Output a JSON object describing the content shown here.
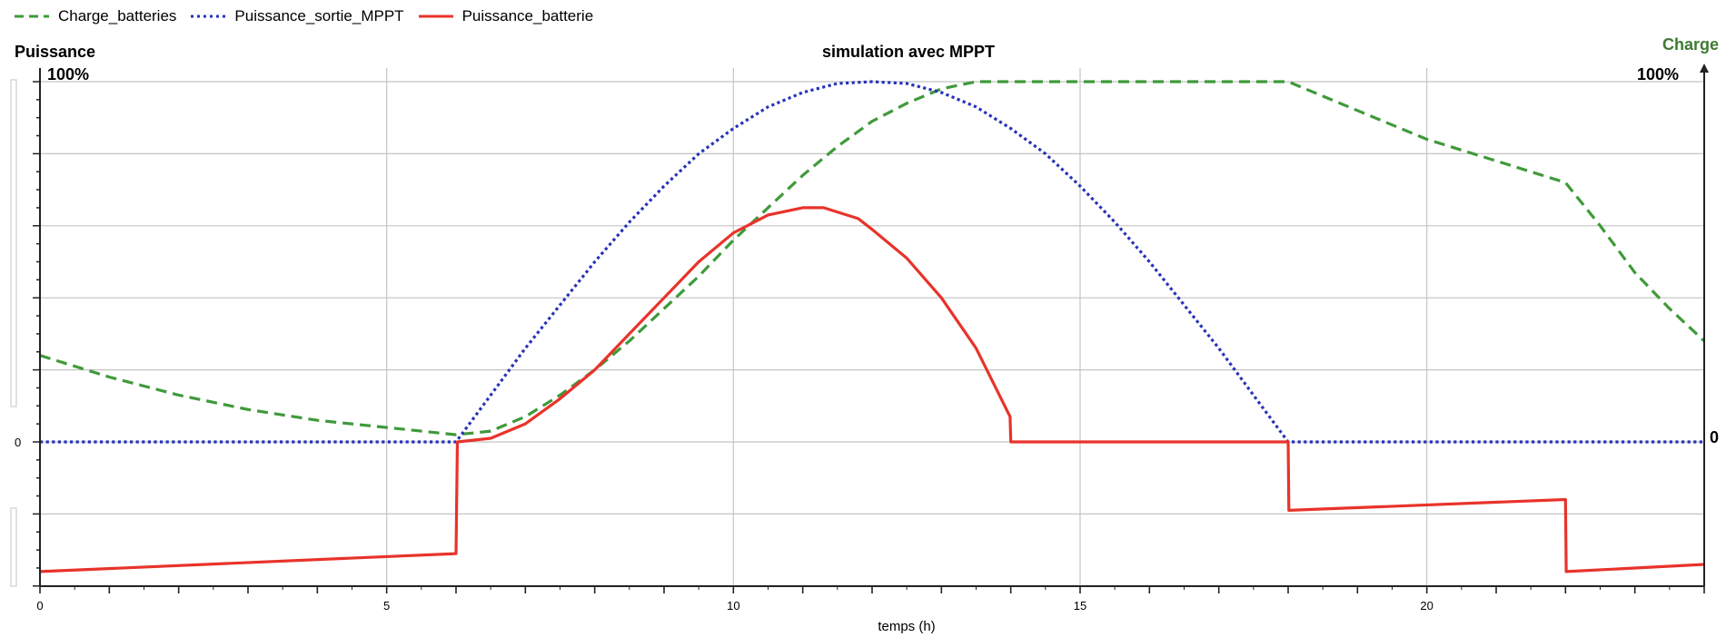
{
  "chart_data": {
    "type": "line",
    "title": "simulation avec MPPT",
    "xlabel": "temps (h)",
    "ylabel_left": "Puissance",
    "ylabel_right": "Charge",
    "left_top_label": "100%",
    "left_zero_label": "0",
    "right_top_label": "100%",
    "right_zero_label": "0",
    "xlim": [
      0,
      24
    ],
    "xticks": [
      "0",
      "5",
      "10",
      "15",
      "20"
    ],
    "ylim_pct": [
      -40,
      100
    ],
    "grid": true,
    "legend_position": "top-left",
    "series": [
      {
        "name": "Charge_batteries",
        "style": "dashed",
        "color": "#3f9a3a",
        "x": [
          0,
          1,
          2,
          3,
          4,
          5,
          6,
          6.5,
          7,
          7.5,
          8,
          8.5,
          9,
          9.5,
          10,
          10.5,
          11,
          11.5,
          12,
          12.5,
          13,
          13.5,
          14,
          15,
          16,
          17,
          18,
          19,
          20,
          21,
          22,
          22.5,
          23,
          23.5,
          24
        ],
        "y": [
          24,
          18,
          13,
          9,
          6,
          4,
          2,
          3,
          7,
          13,
          20,
          28,
          37,
          46,
          56,
          65,
          74,
          82,
          89,
          94,
          98,
          100,
          100,
          100,
          100,
          100,
          100,
          92,
          84,
          78,
          72,
          60,
          47,
          37,
          28
        ]
      },
      {
        "name": "Puissance_sortie_MPPT",
        "style": "dotted",
        "color": "#2632b8",
        "x": [
          0,
          6,
          6.5,
          7,
          7.5,
          8,
          8.5,
          9,
          9.5,
          10,
          10.5,
          11,
          11.5,
          12,
          12.5,
          13,
          13.5,
          14,
          14.5,
          15,
          15.5,
          16,
          16.5,
          17,
          17.5,
          18,
          19,
          20,
          21,
          22,
          23,
          24
        ],
        "y": [
          0,
          0,
          13,
          26,
          38,
          50,
          61,
          71,
          80,
          87,
          93,
          97,
          99.5,
          100,
          99.5,
          97,
          93,
          87,
          80,
          71,
          61,
          50,
          38,
          26,
          13,
          0,
          0,
          0,
          0,
          0,
          0,
          0
        ]
      },
      {
        "name": "Puissance_batterie",
        "style": "solid",
        "color": "#e8332b",
        "x": [
          0,
          6,
          6.02,
          6.5,
          7,
          7.5,
          8,
          8.5,
          9,
          9.5,
          10,
          10.5,
          11,
          11.3,
          11.8,
          12,
          12.5,
          13,
          13.5,
          13.99,
          14.0,
          18.0,
          18.01,
          22.0,
          22.01,
          24
        ],
        "y": [
          -36,
          -31,
          0,
          1,
          5,
          12,
          20,
          30,
          40,
          50,
          58,
          63,
          65,
          65,
          62,
          59,
          51,
          40,
          26,
          7,
          0,
          0,
          -19,
          -16,
          -36,
          -34
        ]
      }
    ]
  }
}
